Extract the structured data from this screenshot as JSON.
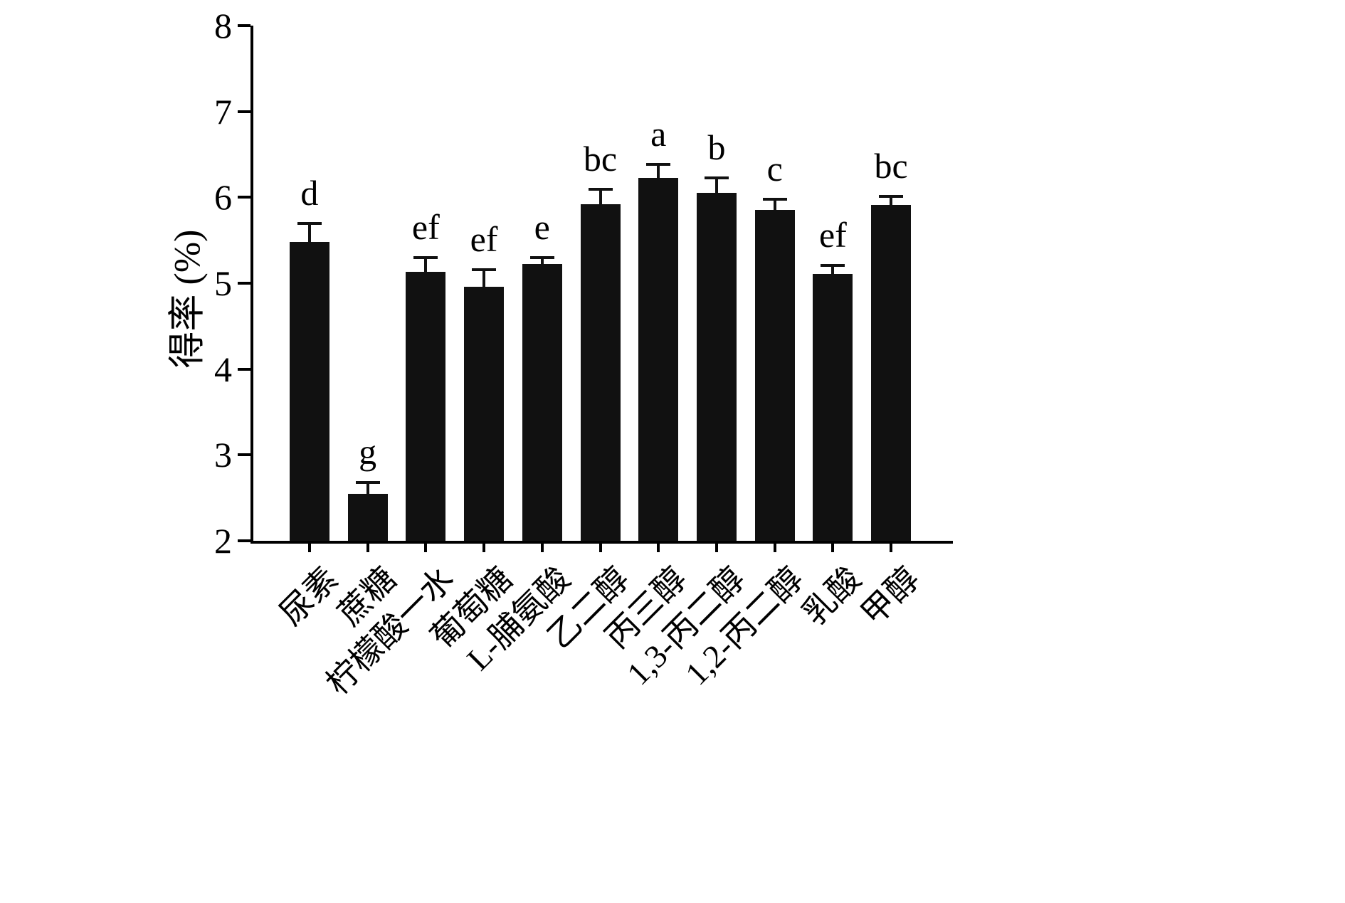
{
  "chart_data": {
    "type": "bar",
    "title": "",
    "xlabel": "",
    "ylabel": "得率 (%)",
    "ylim": [
      2,
      8
    ],
    "yticks": [
      2,
      3,
      4,
      5,
      6,
      7,
      8
    ],
    "grid": false,
    "legend": "none",
    "bar_color": "#111111",
    "categories": [
      "尿素",
      "蔗糖",
      "柠檬酸一水",
      "葡萄糖",
      "L-脯氨酸",
      "乙二醇",
      "丙三醇",
      "1,3-丙二醇",
      "1,2-丙二醇",
      "乳酸",
      "甲醇"
    ],
    "values": [
      5.48,
      2.55,
      5.13,
      4.96,
      5.22,
      5.92,
      6.23,
      6.05,
      5.85,
      5.11,
      5.91
    ],
    "errors_plus": [
      0.22,
      0.13,
      0.17,
      0.2,
      0.08,
      0.17,
      0.15,
      0.18,
      0.13,
      0.1,
      0.1
    ],
    "sig_letters": [
      "d",
      "g",
      "ef",
      "ef",
      "e",
      "bc",
      "a",
      "b",
      "c",
      "ef",
      "bc"
    ]
  }
}
